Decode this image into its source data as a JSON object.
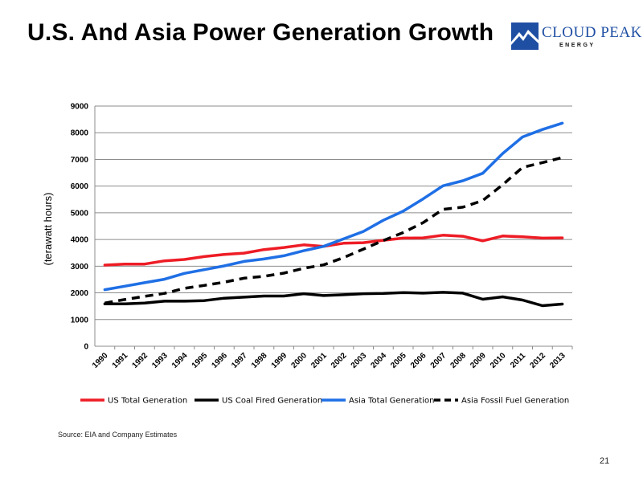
{
  "slide": {
    "title": "U.S. And Asia Power Generation Growth",
    "logo_name": "CLOUD PEAK",
    "logo_sub": "ENERGY",
    "source": "Source:  EIA and Company Estimates",
    "page_number": "21"
  },
  "colors": {
    "us_total": "#ee1c25",
    "us_coal": "#000000",
    "asia_total": "#1f6fe5",
    "asia_fossil": "#000000",
    "grid": "#8c8c8c",
    "logo_blue": "#1f4fa3"
  },
  "chart_data": {
    "type": "line",
    "title": "",
    "xlabel": "",
    "ylabel": "(terawatt  hours)",
    "ylim": [
      0,
      9000
    ],
    "yticks": [
      "0",
      "1000",
      "2000",
      "3000",
      "4000",
      "5000",
      "6000",
      "7000",
      "8000",
      "9000"
    ],
    "grid": true,
    "legend_position": "bottom",
    "x": [
      "1990",
      "1991",
      "1992",
      "1993",
      "1994",
      "1995",
      "1996",
      "1997",
      "1998",
      "1999",
      "2000",
      "2001",
      "2002",
      "2003",
      "2004",
      "2005",
      "2006",
      "2007",
      "2008",
      "2009",
      "2010",
      "2011",
      "2012",
      "2013"
    ],
    "series": [
      {
        "name": "US Total Generation",
        "color": "#ee1c25",
        "dash": false,
        "values": [
          3040,
          3080,
          3080,
          3200,
          3250,
          3360,
          3440,
          3490,
          3620,
          3700,
          3800,
          3740,
          3860,
          3880,
          3970,
          4050,
          4060,
          4160,
          4120,
          3950,
          4130,
          4100,
          4050,
          4060
        ]
      },
      {
        "name": "US Coal Fired Generation",
        "color": "#000000",
        "dash": false,
        "values": [
          1590,
          1590,
          1620,
          1690,
          1690,
          1710,
          1800,
          1840,
          1880,
          1880,
          1970,
          1900,
          1930,
          1970,
          1980,
          2010,
          1990,
          2020,
          1990,
          1760,
          1850,
          1730,
          1520,
          1580
        ]
      },
      {
        "name": "Asia Total Generation",
        "color": "#1f6fe5",
        "dash": false,
        "values": [
          2120,
          2250,
          2380,
          2510,
          2730,
          2870,
          3010,
          3180,
          3270,
          3390,
          3580,
          3740,
          4020,
          4300,
          4720,
          5060,
          5520,
          6010,
          6200,
          6480,
          7220,
          7840,
          8120,
          8360
        ]
      },
      {
        "name": "Asia Fossil Fuel Generation",
        "color": "#000000",
        "dash": true,
        "values": [
          1620,
          1750,
          1870,
          1980,
          2170,
          2280,
          2400,
          2550,
          2620,
          2740,
          2920,
          3050,
          3320,
          3640,
          3960,
          4260,
          4630,
          5130,
          5210,
          5460,
          6050,
          6700,
          6880,
          7070
        ]
      }
    ]
  }
}
